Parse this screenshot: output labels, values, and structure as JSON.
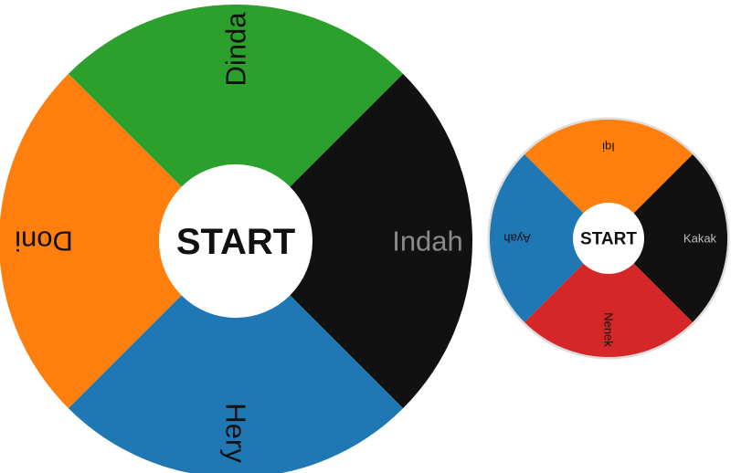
{
  "wheels": [
    {
      "start_label": "START",
      "segments": [
        {
          "label": "Dinda",
          "color": "#2ca02c",
          "text_color": "#111111"
        },
        {
          "label": "Indah",
          "color": "#111111",
          "text_color": "#8a8a8a"
        },
        {
          "label": "Hery",
          "color": "#1f77b4",
          "text_color": "#111111"
        },
        {
          "label": "Doni",
          "color": "#ff7f0e",
          "text_color": "#111111"
        }
      ]
    },
    {
      "start_label": "START",
      "segments": [
        {
          "label": "Iqi",
          "color": "#ff7f0e",
          "text_color": "#111111"
        },
        {
          "label": "Kakak",
          "color": "#111111",
          "text_color": "#bdbdbd"
        },
        {
          "label": "Nenek",
          "color": "#d62728",
          "text_color": "#111111"
        },
        {
          "label": "Ayah",
          "color": "#1f77b4",
          "text_color": "#111111"
        }
      ]
    }
  ]
}
